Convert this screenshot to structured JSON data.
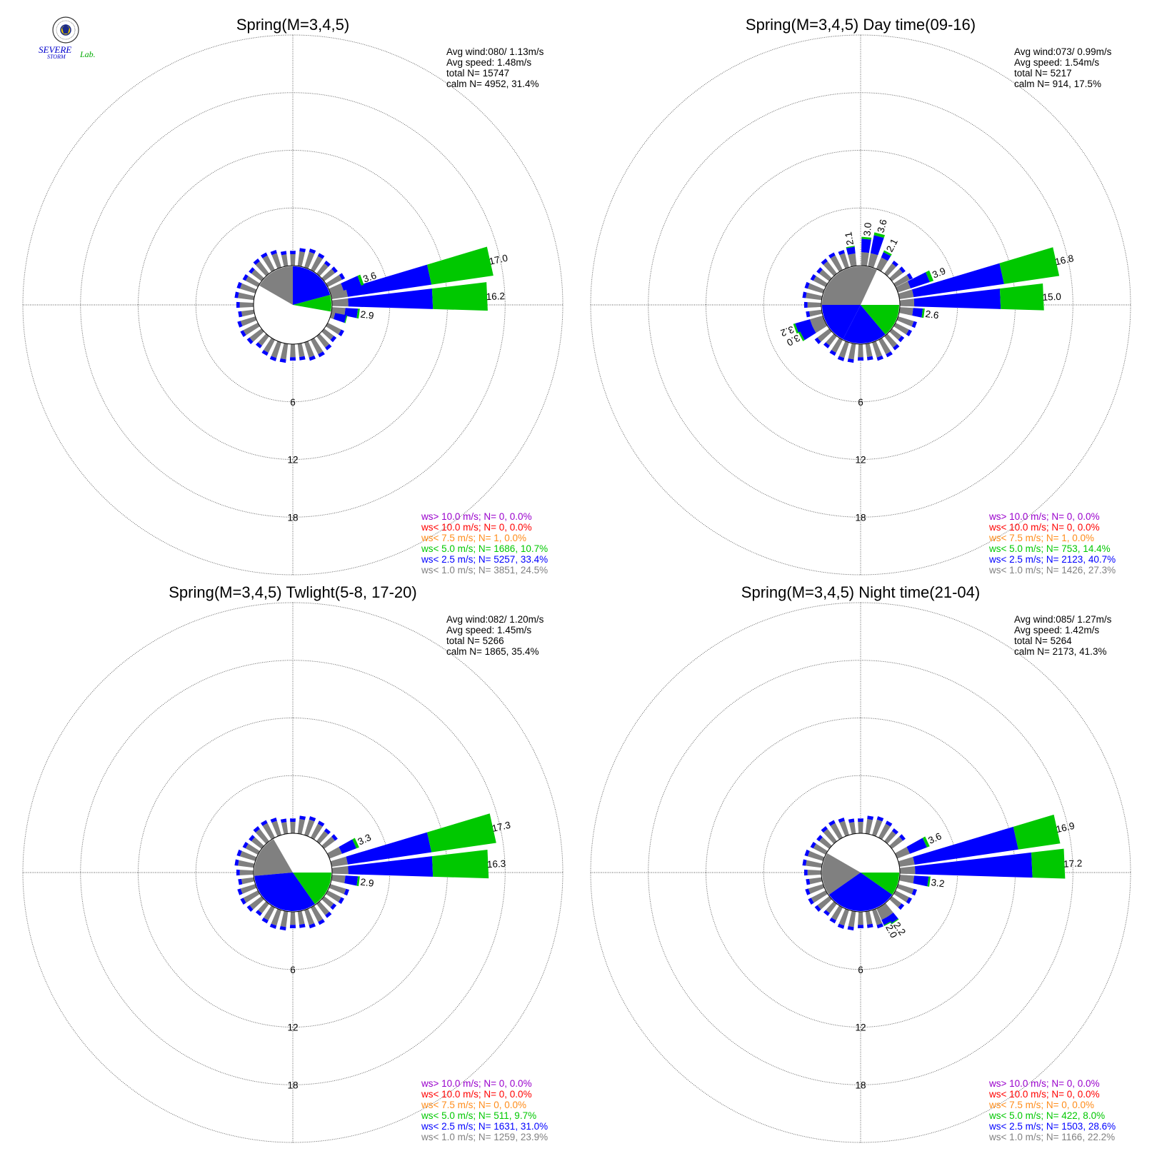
{
  "colors": {
    "ws_lt_1_0": "#808080",
    "ws_lt_2_5": "#0000ff",
    "ws_lt_5_0": "#00c800",
    "ws_lt_7_5": "#ff8c1a",
    "ws_lt_10_0": "#ff0000",
    "ws_gt_10_0": "#9900cc"
  },
  "logo": {
    "text_line1": "SEVERE",
    "text_line2": "STORM",
    "text_lab": "Lab."
  },
  "chart_data": [
    {
      "type": "wind-rose",
      "title": "Spring(M=3,4,5)",
      "stats": [
        "Avg wind:080/ 1.13m/s",
        "Avg speed: 1.48m/s",
        "total N=        15747",
        "calm N=   4952,  31.4%"
      ],
      "ring_labels": [
        "6",
        "12",
        "18"
      ],
      "rmax": 24,
      "calm_pct": 31.4,
      "calm_pie": [
        {
          "band": "ws_lt_1_0",
          "start": 300,
          "end": 360
        },
        {
          "band": "ws_lt_2_5",
          "start": 0,
          "end": 75
        },
        {
          "band": "ws_lt_5_0",
          "start": 75,
          "end": 100
        }
      ],
      "bars": [
        {
          "dir": 77.5,
          "c1": 1.7,
          "c2": 10.5,
          "c3": 17.0,
          "label": "17.0"
        },
        {
          "dir": 87.5,
          "c1": 1.7,
          "c2": 10.5,
          "c3": 16.2,
          "label": "16.2"
        },
        {
          "dir": 70,
          "c1": 1.4,
          "c2": 3.3,
          "c3": 3.6,
          "label": "3.6"
        },
        {
          "dir": 97.5,
          "c1": 1.4,
          "c2": 2.7,
          "c3": 2.9,
          "label": "2.9"
        },
        {
          "dir": 105,
          "c1": 0.4,
          "c2": 1.6,
          "c3": 1.7,
          "label": ""
        }
      ],
      "legend": [
        {
          "text": "ws> 10.0 m/s; N=     0,  0.0%",
          "band": "ws_gt_10_0"
        },
        {
          "text": "ws< 10.0 m/s; N=     0,  0.0%",
          "band": "ws_lt_10_0"
        },
        {
          "text": "ws<  7.5 m/s; N=     1,  0.0%",
          "band": "ws_lt_7_5"
        },
        {
          "text": "ws<  5.0 m/s; N=  1686, 10.7%",
          "band": "ws_lt_5_0"
        },
        {
          "text": "ws<  2.5 m/s; N=  5257, 33.4%",
          "band": "ws_lt_2_5"
        },
        {
          "text": "ws<  1.0 m/s; N=  3851, 24.5%",
          "band": "ws_lt_1_0"
        }
      ]
    },
    {
      "type": "wind-rose",
      "title": "Spring(M=3,4,5) Day time(09-16)",
      "stats": [
        "Avg wind:073/ 0.99m/s",
        "Avg speed: 1.54m/s",
        "total N=         5217",
        "calm N=    914,  17.5%"
      ],
      "ring_labels": [
        "6",
        "12",
        "18"
      ],
      "rmax": 24,
      "calm_pct": 17.5,
      "calm_pie": [
        {
          "band": "ws_lt_1_0",
          "start": 270,
          "end": 385
        },
        {
          "band": "ws_lt_2_5",
          "start": 207,
          "end": 270
        },
        {
          "band": "ws_lt_2_5",
          "start": 140,
          "end": 207
        },
        {
          "band": "ws_lt_5_0",
          "start": 90,
          "end": 140
        }
      ],
      "bars": [
        {
          "dir": 77.5,
          "c1": 1.5,
          "c2": 11.0,
          "c3": 16.8,
          "label": "16.8"
        },
        {
          "dir": 87.5,
          "c1": 1.5,
          "c2": 10.5,
          "c3": 15.0,
          "label": "15.0"
        },
        {
          "dir": 67.5,
          "c1": 1.4,
          "c2": 3.5,
          "c3": 3.9,
          "label": "3.9"
        },
        {
          "dir": 97.5,
          "c1": 1.4,
          "c2": 2.4,
          "c3": 2.6,
          "label": "2.6"
        },
        {
          "dir": 15,
          "c1": 1.4,
          "c2": 3.3,
          "c3": 3.6,
          "label": "3.6"
        },
        {
          "dir": 5,
          "c1": 1.4,
          "c2": 2.8,
          "c3": 3.0,
          "label": "3.0"
        },
        {
          "dir": -10,
          "c1": 1.3,
          "c2": 2.0,
          "c3": 2.1,
          "label": "2.1"
        },
        {
          "dir": 27.5,
          "c1": 1.3,
          "c2": 1.9,
          "c3": 2.1,
          "label": "2.1"
        },
        {
          "dir": 250,
          "c1": 1.4,
          "c2": 3.0,
          "c3": 3.2,
          "label": "3.2"
        },
        {
          "dir": 242,
          "c1": 1.4,
          "c2": 2.8,
          "c3": 3.0,
          "label": "3.0"
        }
      ],
      "legend": [
        {
          "text": "ws> 10.0 m/s; N=     0,  0.0%",
          "band": "ws_gt_10_0"
        },
        {
          "text": "ws< 10.0 m/s; N=     0,  0.0%",
          "band": "ws_lt_10_0"
        },
        {
          "text": "ws<  7.5 m/s; N=     1,  0.0%",
          "band": "ws_lt_7_5"
        },
        {
          "text": "ws<  5.0 m/s; N=   753, 14.4%",
          "band": "ws_lt_5_0"
        },
        {
          "text": "ws<  2.5 m/s; N=  2123, 40.7%",
          "band": "ws_lt_2_5"
        },
        {
          "text": "ws<  1.0 m/s; N=  1426, 27.3%",
          "band": "ws_lt_1_0"
        }
      ]
    },
    {
      "type": "wind-rose",
      "title": "Spring(M=3,4,5) Twlight(5-8, 17-20)",
      "stats": [
        "Avg wind:082/ 1.20m/s",
        "Avg speed: 1.45m/s",
        "total N=         5266",
        "calm N=   1865,  35.4%"
      ],
      "ring_labels": [
        "6",
        "12",
        "18"
      ],
      "rmax": 24,
      "calm_pct": 35.4,
      "calm_pie": [
        {
          "band": "ws_lt_1_0",
          "start": 265,
          "end": 330
        },
        {
          "band": "ws_lt_2_5",
          "start": 145,
          "end": 265
        },
        {
          "band": "ws_lt_2_5",
          "start": 0,
          "end": 0
        },
        {
          "band": "ws_lt_5_0",
          "start": 90,
          "end": 145
        }
      ],
      "bars": [
        {
          "dir": 77.5,
          "c1": 1.7,
          "c2": 10.5,
          "c3": 17.3,
          "label": "17.3"
        },
        {
          "dir": 87.5,
          "c1": 1.7,
          "c2": 10.5,
          "c3": 16.3,
          "label": "16.3"
        },
        {
          "dir": 65,
          "c1": 1.4,
          "c2": 3.0,
          "c3": 3.3,
          "label": "3.3"
        },
        {
          "dir": 97.5,
          "c1": 1.4,
          "c2": 2.7,
          "c3": 2.9,
          "label": "2.9"
        }
      ],
      "legend": [
        {
          "text": "ws> 10.0 m/s; N=     0,  0.0%",
          "band": "ws_gt_10_0"
        },
        {
          "text": "ws< 10.0 m/s; N=     0,  0.0%",
          "band": "ws_lt_10_0"
        },
        {
          "text": "ws<  7.5 m/s; N=     0,  0.0%",
          "band": "ws_lt_7_5"
        },
        {
          "text": "ws<  5.0 m/s; N=   511,  9.7%",
          "band": "ws_lt_5_0"
        },
        {
          "text": "ws<  2.5 m/s; N=  1631, 31.0%",
          "band": "ws_lt_2_5"
        },
        {
          "text": "ws<  1.0 m/s; N=  1259, 23.9%",
          "band": "ws_lt_1_0"
        }
      ]
    },
    {
      "type": "wind-rose",
      "title": "Spring(M=3,4,5) Night time(21-04)",
      "stats": [
        "Avg wind:085/ 1.27m/s",
        "Avg speed: 1.42m/s",
        "total N=         5264",
        "calm N=   2173,  41.3%"
      ],
      "ring_labels": [
        "6",
        "12",
        "18"
      ],
      "rmax": 24,
      "calm_pct": 41.3,
      "calm_pie": [
        {
          "band": "ws_lt_1_0",
          "start": 235,
          "end": 300
        },
        {
          "band": "ws_lt_2_5",
          "start": 125,
          "end": 235
        },
        {
          "band": "ws_lt_5_0",
          "start": 90,
          "end": 125
        }
      ],
      "bars": [
        {
          "dir": 77.5,
          "c1": 1.6,
          "c2": 12.5,
          "c3": 16.9,
          "label": "16.9"
        },
        {
          "dir": 87.5,
          "c1": 1.6,
          "c2": 13.8,
          "c3": 17.2,
          "label": "17.2"
        },
        {
          "dir": 65,
          "c1": 1.4,
          "c2": 3.3,
          "c3": 3.6,
          "label": "3.6"
        },
        {
          "dir": 97.5,
          "c1": 1.5,
          "c2": 3.0,
          "c3": 3.2,
          "label": "3.2"
        },
        {
          "dir": 145,
          "c1": 1.3,
          "c2": 2.1,
          "c3": 2.2,
          "label": "2.2"
        },
        {
          "dir": 152,
          "c1": 1.3,
          "c2": 1.9,
          "c3": 2.0,
          "label": "2.0"
        }
      ],
      "legend": [
        {
          "text": "ws> 10.0 m/s; N=     0,  0.0%",
          "band": "ws_gt_10_0"
        },
        {
          "text": "ws< 10.0 m/s; N=     0,  0.0%",
          "band": "ws_lt_10_0"
        },
        {
          "text": "ws<  7.5 m/s; N=     0,  0.0%",
          "band": "ws_lt_7_5"
        },
        {
          "text": "ws<  5.0 m/s; N=   422,  8.0%",
          "band": "ws_lt_5_0"
        },
        {
          "text": "ws<  2.5 m/s; N=  1503, 28.6%",
          "band": "ws_lt_2_5"
        },
        {
          "text": "ws<  1.0 m/s; N=  1166, 22.2%",
          "band": "ws_lt_1_0"
        }
      ]
    }
  ]
}
